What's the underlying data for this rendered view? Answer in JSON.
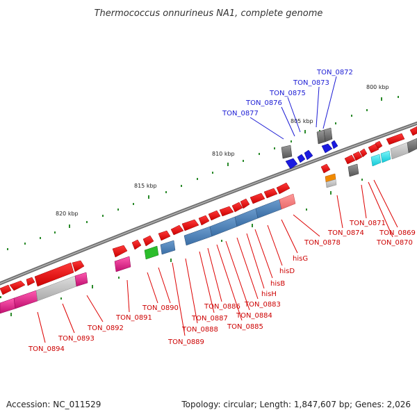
{
  "title": "Thermococcus onnurineus NA1, complete genome",
  "footer": {
    "accession": "Accession: NC_011529",
    "summary": "Topology: circular; Length: 1,847,607 bp; Genes: 2,026"
  },
  "ticks": [
    "800 kbp",
    "805 kbp",
    "810 kbp",
    "815 kbp",
    "820 kbp"
  ],
  "labels_top": [
    "TON_0872",
    "TON_0873",
    "TON_0875",
    "TON_0876",
    "TON_0877"
  ],
  "labels_bottom": [
    "TON_0869",
    "TON_0870",
    "TON_0871",
    "TON_0874",
    "TON_0878",
    "hisG",
    "hisD",
    "hisB",
    "hisH",
    "TON_0883",
    "TON_0884",
    "TON_0885",
    "TON_0886",
    "TON_0887",
    "TON_0888",
    "TON_0889",
    "TON_0890",
    "TON_0891",
    "TON_0892",
    "TON_0893",
    "TON_0894"
  ],
  "colors": {
    "forward_gene": "#ee0000",
    "reverse_gene": "#1a1ae0",
    "his_operon": "#4a7fb5",
    "hypothetical": "#7f7f7f",
    "magenta": "#e21f8a",
    "cyan": "#18e5ef",
    "green": "#2bbd2b",
    "orange": "#f08a00",
    "light_gray": "#b8b8b8",
    "backbone": "#8c8c8c",
    "tick": "#1f7a1f"
  }
}
